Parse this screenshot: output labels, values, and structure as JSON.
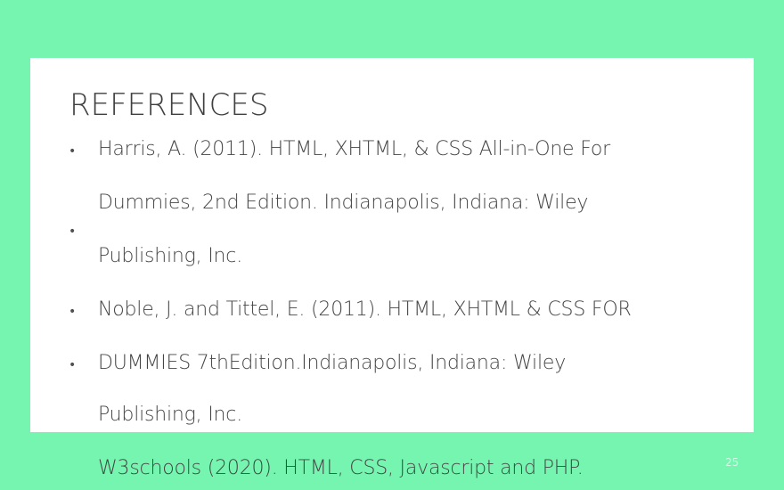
{
  "slide": {
    "title": "REFERENCES",
    "bullet_symbol": "•",
    "lines": [
      "Harris, A. (2011). HTML, XHTML, & CSS All-in-One For",
      "Dummies, 2nd Edition. Indianapolis, Indiana: Wiley",
      "Publishing, Inc.",
      "Noble, J. and Tittel, E. (2011). HTML, XHTML & CSS FOR",
      "DUMMIES 7thEdition.Indianapolis, Indiana: Wiley",
      "Publishing, Inc.",
      "W3schools (2020). HTML, CSS, Javascript and PHP."
    ],
    "slide_number": "25"
  },
  "colors": {
    "background": "#76f5b0",
    "card": "#ffffff",
    "text": "#454545"
  }
}
